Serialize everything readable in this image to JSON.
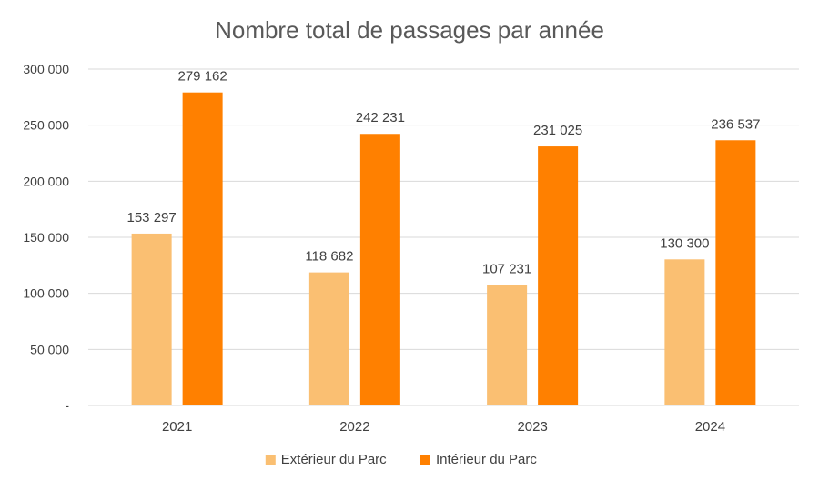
{
  "chart_data": {
    "type": "bar",
    "title": "Nombre total de passages par année",
    "xlabel": "",
    "ylabel": "",
    "ylim": [
      0,
      300000
    ],
    "yticks": [
      {
        "value": 0,
        "label": "-"
      },
      {
        "value": 50000,
        "label": "50 000"
      },
      {
        "value": 100000,
        "label": "100 000"
      },
      {
        "value": 150000,
        "label": "150 000"
      },
      {
        "value": 200000,
        "label": "200 000"
      },
      {
        "value": 250000,
        "label": "250 000"
      },
      {
        "value": 300000,
        "label": "300 000"
      }
    ],
    "grid": true,
    "legend_position": "bottom",
    "categories": [
      "2021",
      "2022",
      "2023",
      "2024"
    ],
    "series": [
      {
        "name": "Extérieur du Parc",
        "color": "#FABF72",
        "values": [
          153297,
          118682,
          107231,
          130300
        ],
        "labels": [
          "153 297",
          "118 682",
          "107 231",
          "130 300"
        ]
      },
      {
        "name": "Intérieur du Parc",
        "color": "#FF8000",
        "values": [
          279162,
          242231,
          231025,
          236537
        ],
        "labels": [
          "279 162",
          "242 231",
          "231 025",
          "236 537"
        ]
      }
    ]
  }
}
